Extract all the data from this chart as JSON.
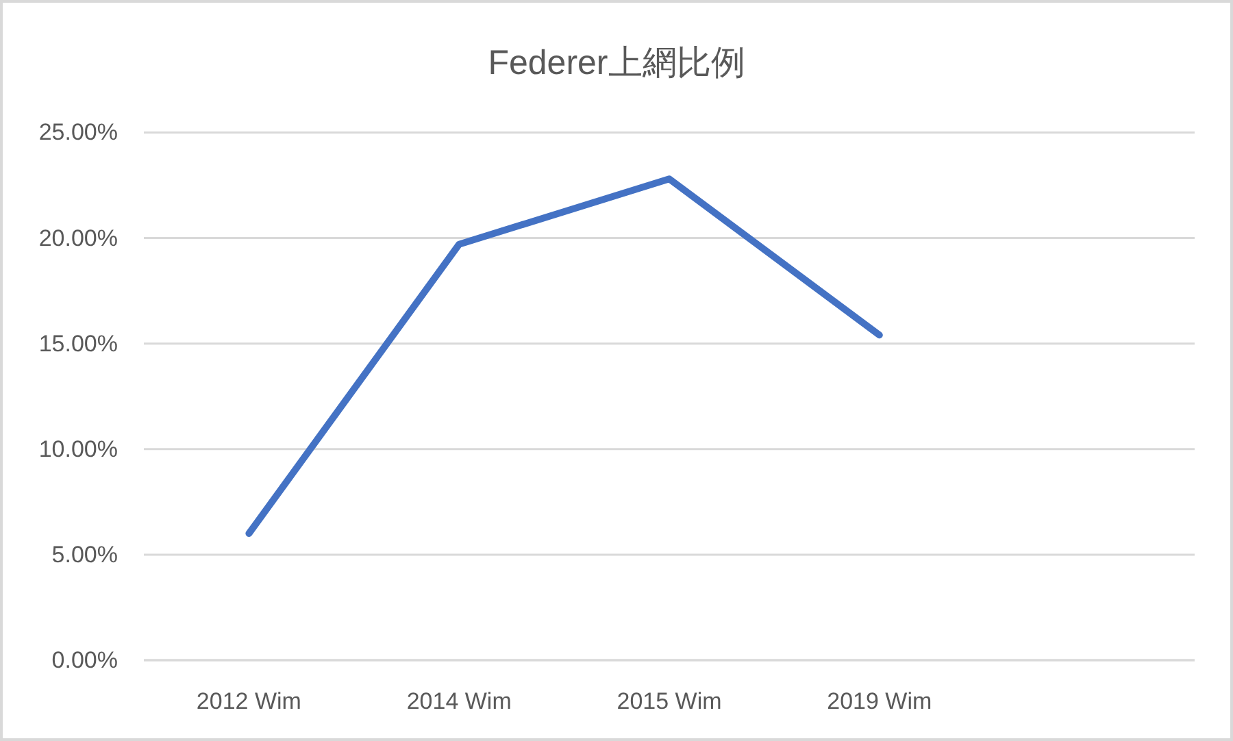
{
  "chart_data": {
    "type": "line",
    "title": "Federer上網比例",
    "categories": [
      "2012 Wim",
      "2014 Wim",
      "2015 Wim",
      "2019 Wim",
      null
    ],
    "series": [
      {
        "color": "#4472c4",
        "values": [
          6.0,
          19.7,
          22.8,
          15.4,
          null
        ]
      }
    ],
    "ylim": [
      0,
      25
    ],
    "yticks": [
      {
        "value": 0,
        "label": "0.00%"
      },
      {
        "value": 5,
        "label": "5.00%"
      },
      {
        "value": 10,
        "label": "10.00%"
      },
      {
        "value": 15,
        "label": "15.00%"
      },
      {
        "value": 20,
        "label": "20.00%"
      },
      {
        "value": 25,
        "label": "25.00%"
      }
    ],
    "grid": "y",
    "marker": "none",
    "line_style": "solid"
  }
}
